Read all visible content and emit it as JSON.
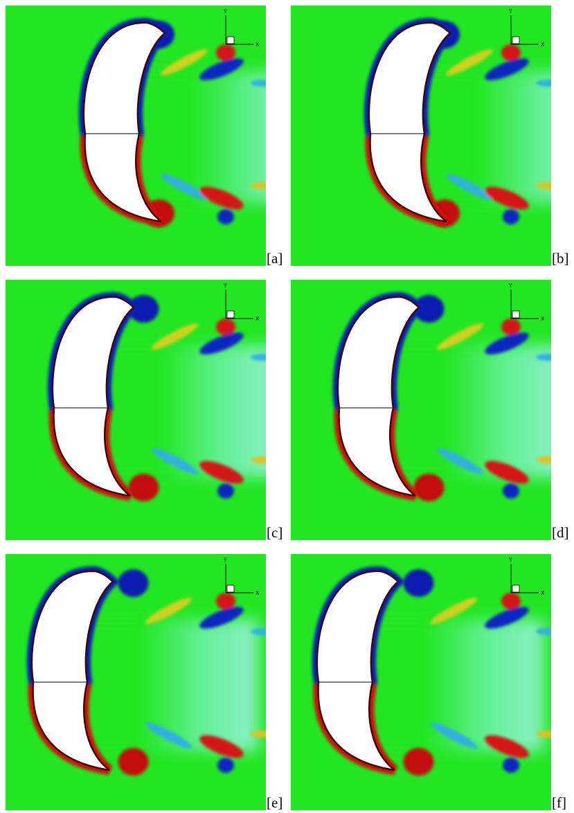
{
  "panels": [
    {
      "label": "[a]",
      "axis_y": "Y",
      "axis_x": "X"
    },
    {
      "label": "[b]",
      "axis_y": "Y",
      "axis_x": "X"
    },
    {
      "label": "[c]",
      "axis_y": "Y",
      "axis_x": "X"
    },
    {
      "label": "[d]",
      "axis_y": "Y",
      "axis_x": "X"
    },
    {
      "label": "[e]",
      "axis_y": "Y",
      "axis_x": "X"
    },
    {
      "label": "[f]",
      "axis_y": "Y",
      "axis_x": "X"
    }
  ]
}
